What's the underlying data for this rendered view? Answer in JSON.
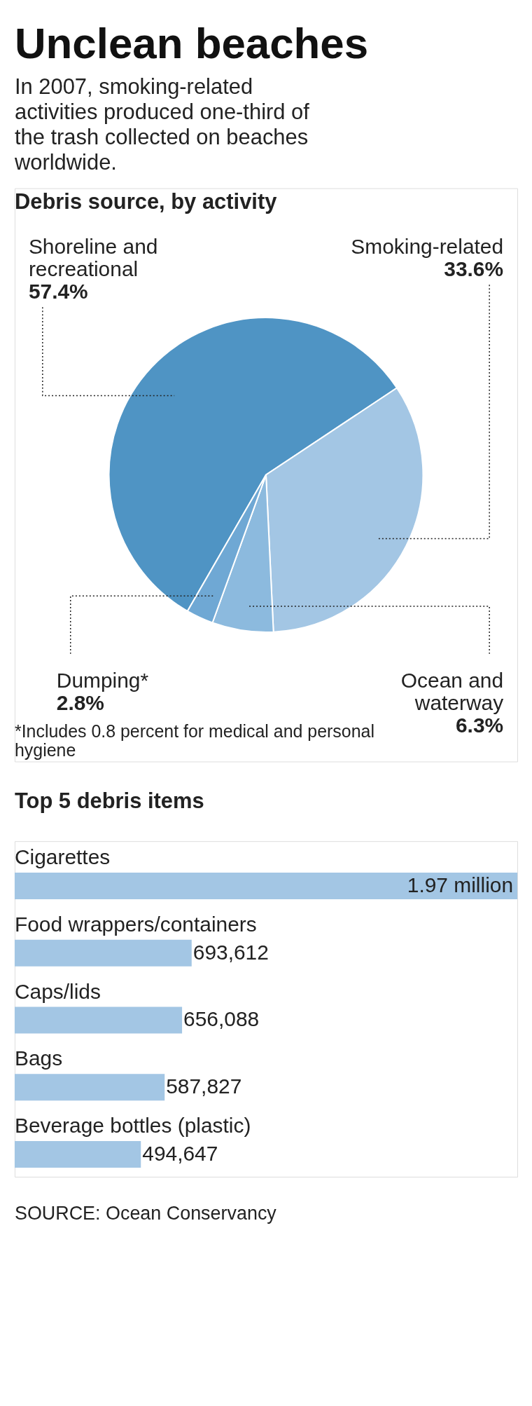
{
  "chart_data": [
    {
      "type": "pie",
      "title": "Unclean beaches",
      "subtitle": "In 2007, smoking-related activities produced one-third of the trash collected on beaches worldwide.",
      "legend_title": "Debris source, by activity",
      "categories": [
        "Shoreline and recreational",
        "Smoking-related",
        "Ocean and waterway",
        "Dumping*"
      ],
      "values": [
        57.4,
        33.6,
        6.3,
        2.8
      ],
      "value_labels": [
        "57.4%",
        "33.6%",
        "6.3%",
        "2.8%"
      ],
      "colors": [
        "#4f94c4",
        "#a3c6e4",
        "#8cbade",
        "#6fa8d4"
      ],
      "annotations": [
        "*Includes 0.8 percent for medical and personal hygiene"
      ]
    },
    {
      "type": "bar",
      "orientation": "horizontal",
      "title": "Top 5 debris items",
      "categories": [
        "Cigarettes",
        "Food wrappers/containers",
        "Caps/lids",
        "Bags",
        "Beverage bottles (plastic)"
      ],
      "values": [
        1970000,
        693612,
        656088,
        587827,
        494647
      ],
      "value_labels": [
        "1.97 million",
        "693,612",
        "656,088",
        "587,827",
        "494,647"
      ],
      "color": "#a3c6e4",
      "annotations": [
        "SOURCE: Ocean Conservancy"
      ]
    }
  ]
}
